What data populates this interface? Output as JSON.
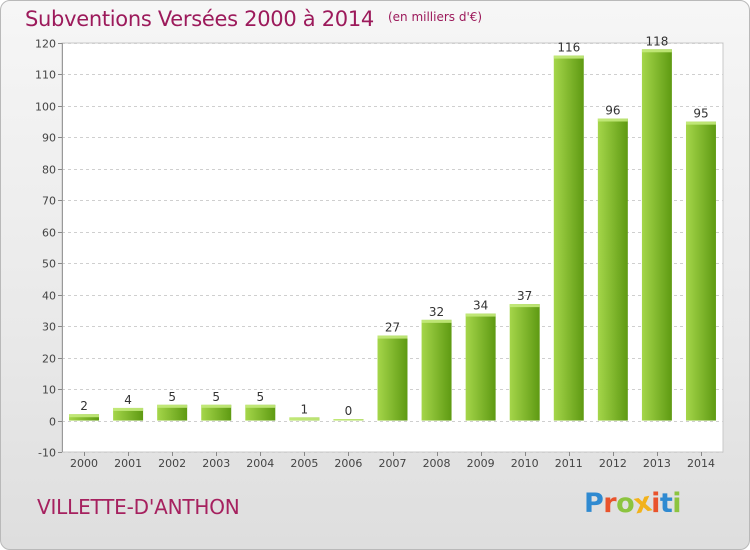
{
  "header": {
    "title": "Subventions Versées 2000 à 2014",
    "subtitle": "(en milliers d'€)"
  },
  "footer": {
    "commune": "VILLETTE-D'ANTHON",
    "logo_text": "Proxiti"
  },
  "colors": {
    "title": "#9c1a5b",
    "bar_light": "#a5d64a",
    "bar_dark": "#5e9a12",
    "logo": [
      "#2f8ad1",
      "#e9532c",
      "#8cc43f",
      "#f2b21b",
      "#e9532c",
      "#2f8ad1",
      "#8cc43f"
    ]
  },
  "chart_data": {
    "type": "bar",
    "categories": [
      "2000",
      "2001",
      "2002",
      "2003",
      "2004",
      "2005",
      "2006",
      "2007",
      "2008",
      "2009",
      "2010",
      "2011",
      "2012",
      "2013",
      "2014"
    ],
    "values": [
      2,
      4,
      5,
      5,
      5,
      1,
      0,
      27,
      32,
      34,
      37,
      116,
      96,
      118,
      95
    ],
    "yticks": [
      -10,
      0,
      10,
      20,
      30,
      40,
      50,
      60,
      70,
      80,
      90,
      100,
      110,
      120
    ],
    "ylim": [
      -10,
      120
    ],
    "grid": "horizontal dashed",
    "legend": "none"
  }
}
